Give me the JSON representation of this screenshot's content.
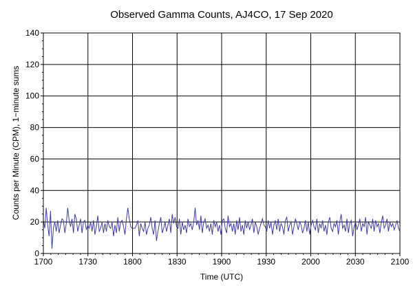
{
  "chart_data": {
    "type": "line",
    "title": "Observed Gamma Counts, AJ4CO, 17 Sep 2020",
    "xlabel": "Time (UTC)",
    "ylabel": "Counts per Minute (CPM), 1−minute sums",
    "x_range_minutes": [
      0,
      240
    ],
    "ylim": [
      0,
      140
    ],
    "x_ticks": [
      {
        "label": "1700",
        "minute": 0
      },
      {
        "label": "1730",
        "minute": 30
      },
      {
        "label": "1800",
        "minute": 60
      },
      {
        "label": "1830",
        "minute": 90
      },
      {
        "label": "1900",
        "minute": 120
      },
      {
        "label": "1930",
        "minute": 150
      },
      {
        "label": "2000",
        "minute": 180
      },
      {
        "label": "2030",
        "minute": 210
      },
      {
        "label": "2100",
        "minute": 240
      }
    ],
    "y_ticks": [
      0,
      20,
      40,
      60,
      80,
      100,
      120,
      140
    ],
    "grid": true,
    "line_color": "#3c3c9c",
    "series": [
      {
        "values": [
          21,
          16,
          29,
          18,
          11,
          27,
          3,
          16,
          20,
          14,
          21,
          13,
          18,
          22,
          21,
          13,
          19,
          29,
          21,
          17,
          22,
          13,
          25,
          22,
          14,
          18,
          22,
          13,
          20,
          21,
          15,
          18,
          16,
          20,
          14,
          21,
          12,
          17,
          24,
          14,
          16,
          20,
          13,
          19,
          14,
          21,
          17,
          16,
          20,
          11,
          18,
          13,
          23,
          14,
          20,
          21,
          17,
          12,
          22,
          29,
          22,
          17,
          16,
          16,
          16,
          18,
          21,
          11,
          19,
          16,
          14,
          20,
          12,
          16,
          18,
          23,
          16,
          12,
          21,
          8,
          14,
          19,
          23,
          13,
          16,
          20,
          14,
          18,
          22,
          13,
          25,
          19,
          23,
          17,
          16,
          22,
          12,
          20,
          15,
          18,
          13,
          22,
          17,
          19,
          15,
          20,
          29,
          18,
          21,
          15,
          24,
          13,
          20,
          22,
          16,
          18,
          14,
          19,
          12,
          21,
          17,
          20,
          14,
          18,
          12,
          21,
          22,
          16,
          13,
          24,
          17,
          19,
          14,
          19,
          12,
          21,
          15,
          23,
          14,
          18,
          12,
          21,
          16,
          20,
          15,
          18,
          22,
          13,
          20,
          17,
          12,
          16,
          19,
          22,
          18,
          17,
          14,
          21,
          16,
          20,
          12,
          18,
          21,
          15,
          22,
          14,
          19,
          17,
          12,
          21,
          23,
          14,
          18,
          20,
          12,
          17,
          22,
          19,
          15,
          20,
          18,
          13,
          16,
          21,
          14,
          20,
          12,
          18,
          21,
          17,
          15,
          22,
          13,
          19,
          16,
          21,
          14,
          18,
          12,
          20,
          23,
          16,
          14,
          19,
          17,
          21,
          12,
          20,
          25,
          16,
          18,
          14,
          22,
          13,
          19,
          21,
          11,
          17,
          20,
          15,
          18,
          22,
          14,
          19,
          17,
          23,
          12,
          20,
          18,
          16,
          22,
          14,
          21,
          17,
          19,
          13,
          20,
          24,
          16,
          18,
          22,
          14,
          20,
          17,
          19,
          15,
          18,
          21,
          16,
          14
        ]
      }
    ]
  }
}
